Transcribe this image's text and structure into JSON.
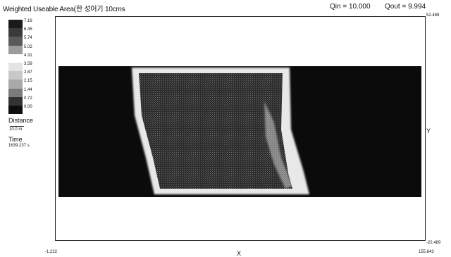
{
  "header": {
    "title": "Weighted Useable Area(한 성어기 10cms",
    "qin": "Qin = 10.000",
    "qout": "Qout = 9.994"
  },
  "legend": {
    "entries": [
      {
        "label": "7.16",
        "color": "#1a1a1a"
      },
      {
        "label": "6.45",
        "color": "#3a3a3a"
      },
      {
        "label": "5.74",
        "color": "#5a5a5a"
      },
      {
        "label": "5.02",
        "color": "#9c9c9c"
      },
      {
        "label": "4.31",
        "color": "#ffffff"
      },
      {
        "label": "3.59",
        "color": "#e4e4e4"
      },
      {
        "label": "2.87",
        "color": "#c8c8c8"
      },
      {
        "label": "2.15",
        "color": "#a9a9a9"
      },
      {
        "label": "1.44",
        "color": "#7b7b7b"
      },
      {
        "label": "0.72",
        "color": "#333333"
      },
      {
        "label": "0.00",
        "color": "#0d0d0d"
      }
    ]
  },
  "distance": {
    "label": "Distance",
    "value": "10.0 m"
  },
  "time": {
    "label": "Time",
    "value": "1639.237 s"
  },
  "plot": {
    "x_min_label": "-1.222",
    "x_max_label": "155.843",
    "y_max_label": "52.489",
    "y_min_label": "-22.489",
    "x_axis_label": "X",
    "y_axis_label": "Y"
  }
}
